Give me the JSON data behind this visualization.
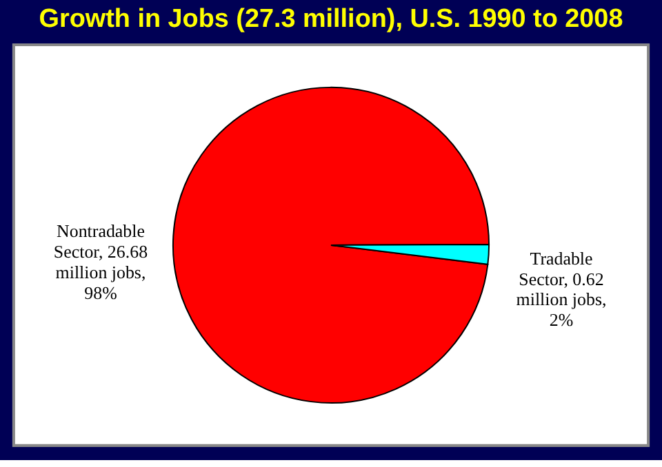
{
  "chart_data": {
    "type": "pie",
    "title": "Growth in Jobs (27.3 million), U.S. 1990 to 2008",
    "categories": [
      "Nontradable Sector",
      "Tradable Sector"
    ],
    "values": [
      98,
      2
    ],
    "colors": [
      "#ff0000",
      "#00ffff"
    ],
    "value_labels": [
      "26.68 million jobs, 98%",
      "0.62 million jobs, 2%"
    ],
    "legend": false
  }
}
